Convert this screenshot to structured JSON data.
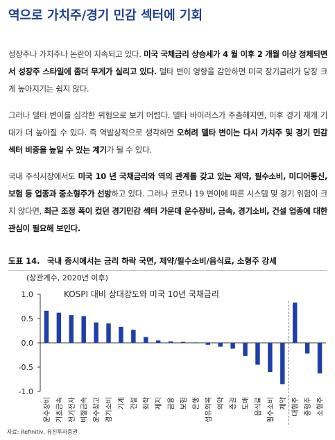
{
  "header": {
    "title": "역으로 가치주/경기 민감 섹터에 기회"
  },
  "paragraphs": [
    {
      "runs": [
        {
          "text": "성장주나 가치주나 논란이 지속되고 있다. ",
          "bold": false
        },
        {
          "text": "미국 국채금리 상승세가 4 월 이후 2 개월 이상 정체되면서 성장주 스타일에 좀더 무게가 실리고 있다.",
          "bold": true
        },
        {
          "text": " 델타 변이 영향을 감안하면 미국 장기금리가 당장 크게 높아지기는 쉽지 않다.",
          "bold": false
        }
      ]
    },
    {
      "runs": [
        {
          "text": "그러나 델타 변이를 심각한 위험으로 보기 어렵다. 델타 바이러스가 주춤해지면, 이후 경기 재개 기대가 더 높아질 수 있다. 즉 역발상적으로 생각하면 ",
          "bold": false
        },
        {
          "text": "오히려 델타 변이는 다시 가치주 및 경기 민감 섹터 비중을 높일 수 있는 계기",
          "bold": true
        },
        {
          "text": "가 될 수 있다.",
          "bold": false
        }
      ]
    },
    {
      "runs": [
        {
          "text": "국내 주식시장에서도 ",
          "bold": false
        },
        {
          "text": "미국 10 년 국채금리와 역의 관계를 갖고 있는 제약, 필수소비, 미디어통신, 보험 등 업종과 중소형주가 선방",
          "bold": true
        },
        {
          "text": "하고 있다. 그러나 코로나 19 변이에 따른 시스템 및 경기 위험이 크지 않다면, ",
          "bold": false
        },
        {
          "text": "최근 조정 폭이 컸던 경기민감 섹터 가운데 운수장비, 금속, 경기소비, 건설 업종에 대한 관심이 필요해 보인다.",
          "bold": true
        }
      ]
    }
  ],
  "figure": {
    "label": "도표 14.",
    "title": "국내 증시에서는 금리 하락 국면, 제약/필수소비/음식료, 소형주 강세"
  },
  "chart_data": {
    "type": "bar",
    "title": "KOSPI 대비 상대강도와 미국 10년 국채금리",
    "y_label": "(상관계수, 2020년 이후)",
    "categories": [
      "운수장비",
      "기초금속",
      "전기전자",
      "비철금속",
      "운수창고",
      "경기소비",
      "기계",
      "건설",
      "화학",
      "제지",
      "금융",
      "보험",
      "은행",
      "섬유의복",
      "의약",
      "증권",
      "도매",
      "음식료",
      "필수소비",
      "제약",
      "대형주",
      "중형주",
      "소형주"
    ],
    "values": [
      0.66,
      0.62,
      0.57,
      0.55,
      0.42,
      0.4,
      0.33,
      0.27,
      0.12,
      0.05,
      0.03,
      0.02,
      0.01,
      -0.04,
      -0.08,
      -0.12,
      -0.27,
      -0.45,
      -0.6,
      -0.85,
      0.83,
      -0.22,
      -0.63
    ],
    "color": "#1f3fa8",
    "ylim": [
      -1,
      1
    ],
    "yticks": [
      {
        "value": 1,
        "label": "1.0"
      },
      {
        "value": 0.5,
        "label": "0.5"
      },
      {
        "value": 0,
        "label": "0.0"
      },
      {
        "value": -0.5,
        "label": "-0.5"
      },
      {
        "value": -1,
        "label": "-1.0"
      }
    ]
  },
  "source": "자료: Refinitiv, 유진투자증권"
}
